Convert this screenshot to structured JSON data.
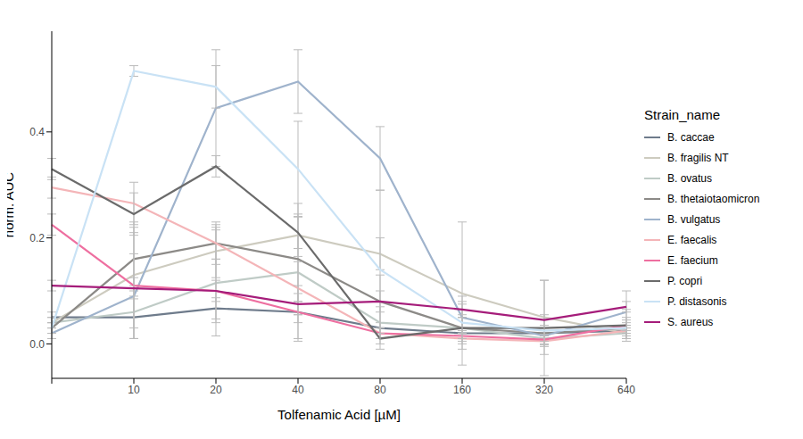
{
  "chart_data": {
    "type": "line",
    "x_label": "Tolfenamic Acid [µM]",
    "y_label": "norm. AUC",
    "categories": [
      null,
      "10",
      "20",
      "40",
      "80",
      "160",
      "320",
      "640"
    ],
    "ylim": [
      -0.065,
      0.59
    ],
    "yticks": [
      {
        "value": 0,
        "label": "0.0"
      },
      {
        "value": 0.2,
        "label": "0.2"
      },
      {
        "value": 0.4,
        "label": "0.4"
      }
    ],
    "grid": false,
    "legend": "right",
    "legend_title": "Strain_name",
    "series": [
      {
        "name": "B. caccae",
        "color": "#6E7B8B",
        "values": [
          0.05,
          0.05,
          0.067,
          0.06,
          0.03,
          0.02,
          0.02,
          0.025
        ],
        "errors": [
          0.01,
          0.04,
          0.02,
          0.02,
          0.01,
          0.01,
          0.01,
          0.01
        ]
      },
      {
        "name": "B. fragilis NT",
        "color": "#CDCBBF",
        "values": [
          0.04,
          0.13,
          0.175,
          0.205,
          0.17,
          0.095,
          0.05,
          0.02
        ],
        "errors": [
          0.01,
          0.1,
          0.05,
          0.04,
          0.03,
          0.135,
          0.07,
          0.01
        ]
      },
      {
        "name": "B. ovatus",
        "color": "#BFCBC6",
        "values": [
          0.04,
          0.06,
          0.115,
          0.135,
          0.04,
          0.03,
          0.01,
          0.02
        ],
        "errors": [
          0.01,
          0.05,
          0.1,
          0.13,
          0.03,
          0.02,
          0.01,
          0.01
        ]
      },
      {
        "name": "B. thetaiotaomicron",
        "color": "#8C8A87",
        "values": [
          0.03,
          0.16,
          0.19,
          0.16,
          0.08,
          0.03,
          0.02,
          0.03
        ],
        "errors": [
          0.01,
          0.06,
          0.03,
          0.08,
          0.05,
          0.02,
          0.01,
          0.01
        ]
      },
      {
        "name": "B. vulgatus",
        "color": "#9FB3CC",
        "values": [
          0.02,
          0.09,
          0.445,
          0.495,
          0.35,
          0.05,
          0.015,
          0.06
        ],
        "errors": [
          0.01,
          0.08,
          0.11,
          0.06,
          0.06,
          0.03,
          0.01,
          0.04
        ]
      },
      {
        "name": "E. faecalis",
        "color": "#F4B5B8",
        "values": [
          0.295,
          0.265,
          0.19,
          0.105,
          0.02,
          0.01,
          0.005,
          0.025
        ],
        "errors": [
          0.02,
          0.04,
          0.04,
          0.05,
          0.01,
          0.01,
          0.01,
          0.01
        ]
      },
      {
        "name": "E. faecium",
        "color": "#EE6FA0",
        "values": [
          0.225,
          0.11,
          0.1,
          0.06,
          0.02,
          0.015,
          0.008,
          0.035
        ],
        "errors": [
          0.02,
          0.1,
          0.06,
          0.05,
          0.01,
          0.01,
          0.01,
          0.01
        ]
      },
      {
        "name": "P. copri",
        "color": "#6B6B6B",
        "values": [
          0.33,
          0.245,
          0.335,
          0.21,
          0.01,
          0.03,
          0.03,
          0.035
        ],
        "errors": [
          0.02,
          0.04,
          0.02,
          0.03,
          0.01,
          0.02,
          0.09,
          0.03
        ]
      },
      {
        "name": "P. distasonis",
        "color": "#C9E2F5",
        "values": [
          0.03,
          0.515,
          0.485,
          0.33,
          0.14,
          0.04,
          0.025,
          0.03
        ],
        "errors": [
          0.01,
          0.01,
          0.04,
          0.09,
          0.15,
          0.05,
          0.02,
          0.02
        ]
      },
      {
        "name": "S. aureus",
        "color": "#A51C7A",
        "values": [
          0.11,
          0.105,
          0.1,
          0.075,
          0.08,
          0.065,
          0.045,
          0.07
        ],
        "errors": [
          0.01,
          0.02,
          0.02,
          0.02,
          0.02,
          0.01,
          0.01,
          0.01
        ]
      }
    ]
  }
}
